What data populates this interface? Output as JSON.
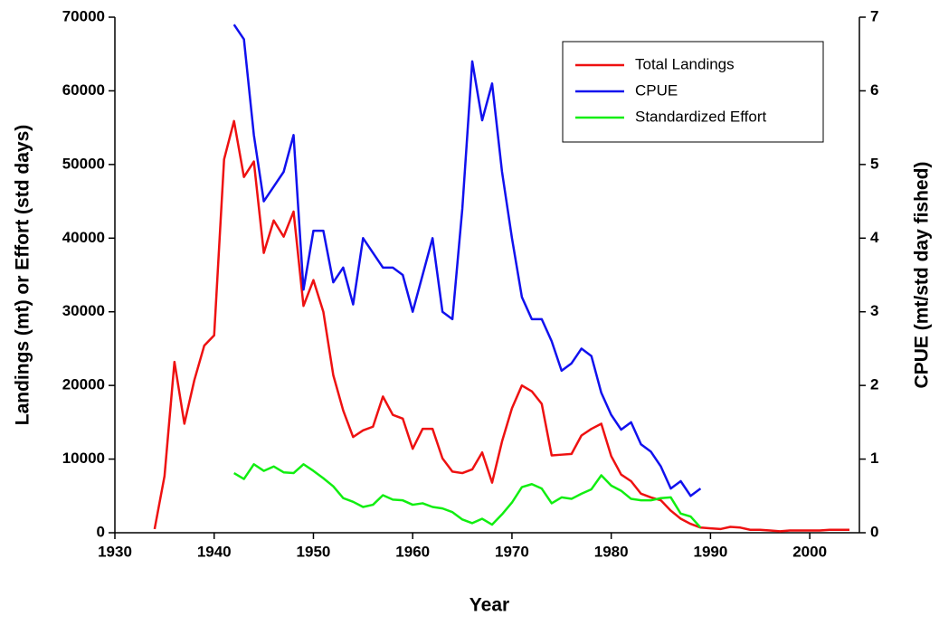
{
  "chart_data": {
    "type": "line",
    "x_label": "Year",
    "y_label": "Landings (mt) or Effort (std days)",
    "y2_label": "CPUE (mt/std day fished)",
    "xlim": [
      1930,
      2005
    ],
    "xticks": [
      1930,
      1940,
      1950,
      1960,
      1970,
      1980,
      1990,
      2000
    ],
    "ylim": [
      0,
      70000
    ],
    "yticks": [
      0,
      10000,
      20000,
      30000,
      40000,
      50000,
      60000,
      70000
    ],
    "y2lim": [
      0,
      7
    ],
    "y2ticks": [
      0,
      1,
      2,
      3,
      4,
      5,
      6,
      7
    ],
    "legend": "upper right",
    "series": [
      {
        "name": "Total Landings",
        "color": "#ee1111",
        "x": [
          1934,
          1935,
          1936,
          1937,
          1938,
          1939,
          1940,
          1941,
          1942,
          1943,
          1944,
          1945,
          1946,
          1947,
          1948,
          1949,
          1950,
          1951,
          1952,
          1953,
          1954,
          1955,
          1956,
          1957,
          1958,
          1959,
          1960,
          1961,
          1962,
          1963,
          1964,
          1965,
          1966,
          1967,
          1968,
          1969,
          1970,
          1971,
          1972,
          1973,
          1974,
          1975,
          1976,
          1977,
          1978,
          1979,
          1980,
          1981,
          1982,
          1983,
          1984,
          1985,
          1986,
          1987,
          1988,
          1989,
          1990,
          1991,
          1992,
          1993,
          1994,
          1995,
          1996,
          1997,
          1998,
          1999,
          2000,
          2001,
          2002,
          2003,
          2004
        ],
        "values": [
          500,
          7700,
          23200,
          14800,
          20700,
          25400,
          26800,
          50700,
          55900,
          48300,
          50400,
          38000,
          42400,
          40200,
          43600,
          30800,
          34300,
          30000,
          21400,
          16600,
          13000,
          13900,
          14400,
          18500,
          16000,
          15500,
          11400,
          14100,
          14100,
          10100,
          8300,
          8100,
          8600,
          10900,
          6800,
          12400,
          16900,
          20000,
          19200,
          17500,
          10500,
          10600,
          10700,
          13200,
          14100,
          14800,
          10400,
          7900,
          7000,
          5300,
          4800,
          4400,
          3000,
          1900,
          1200,
          700,
          600,
          500,
          800,
          700,
          400,
          400,
          300,
          200,
          300,
          300,
          300,
          300,
          400,
          400,
          400
        ]
      },
      {
        "name": "CPUE",
        "color": "#1111ee",
        "axis": "y2",
        "x": [
          1942,
          1943,
          1944,
          1945,
          1946,
          1947,
          1948,
          1949,
          1950,
          1951,
          1952,
          1953,
          1954,
          1955,
          1956,
          1957,
          1958,
          1959,
          1960,
          1961,
          1962,
          1963,
          1964,
          1965,
          1966,
          1967,
          1968,
          1969,
          1970,
          1971,
          1972,
          1973,
          1974,
          1975,
          1976,
          1977,
          1978,
          1979,
          1980,
          1981,
          1982,
          1983,
          1984,
          1985,
          1986,
          1987,
          1988,
          1989
        ],
        "values": [
          6.9,
          6.7,
          5.4,
          4.5,
          4.7,
          4.9,
          5.4,
          3.3,
          4.1,
          4.1,
          3.4,
          3.6,
          3.1,
          4.0,
          3.8,
          3.6,
          3.6,
          3.5,
          3.0,
          3.5,
          4.0,
          3.0,
          2.9,
          4.4,
          6.4,
          5.6,
          6.1,
          4.9,
          4.0,
          3.2,
          2.9,
          2.9,
          2.6,
          2.2,
          2.3,
          2.5,
          2.4,
          1.9,
          1.6,
          1.4,
          1.5,
          1.2,
          1.1,
          0.9,
          0.6,
          0.7,
          0.5,
          0.6
        ]
      },
      {
        "name": "Standardized Effort",
        "color": "#11ee11",
        "x": [
          1942,
          1943,
          1944,
          1945,
          1946,
          1947,
          1948,
          1949,
          1950,
          1951,
          1952,
          1953,
          1954,
          1955,
          1956,
          1957,
          1958,
          1959,
          1960,
          1961,
          1962,
          1963,
          1964,
          1965,
          1966,
          1967,
          1968,
          1969,
          1970,
          1971,
          1972,
          1973,
          1974,
          1975,
          1976,
          1977,
          1978,
          1979,
          1980,
          1981,
          1982,
          1983,
          1984,
          1985,
          1986,
          1987,
          1988,
          1989
        ],
        "values": [
          8100,
          7300,
          9300,
          8400,
          9000,
          8200,
          8100,
          9300,
          8400,
          7400,
          6300,
          4700,
          4200,
          3500,
          3800,
          5100,
          4500,
          4400,
          3800,
          4000,
          3500,
          3300,
          2800,
          1800,
          1300,
          1900,
          1100,
          2500,
          4100,
          6200,
          6600,
          6000,
          4000,
          4800,
          4600,
          5300,
          5900,
          7800,
          6400,
          5700,
          4600,
          4400,
          4400,
          4700,
          4800,
          2600,
          2200,
          700
        ]
      }
    ]
  }
}
